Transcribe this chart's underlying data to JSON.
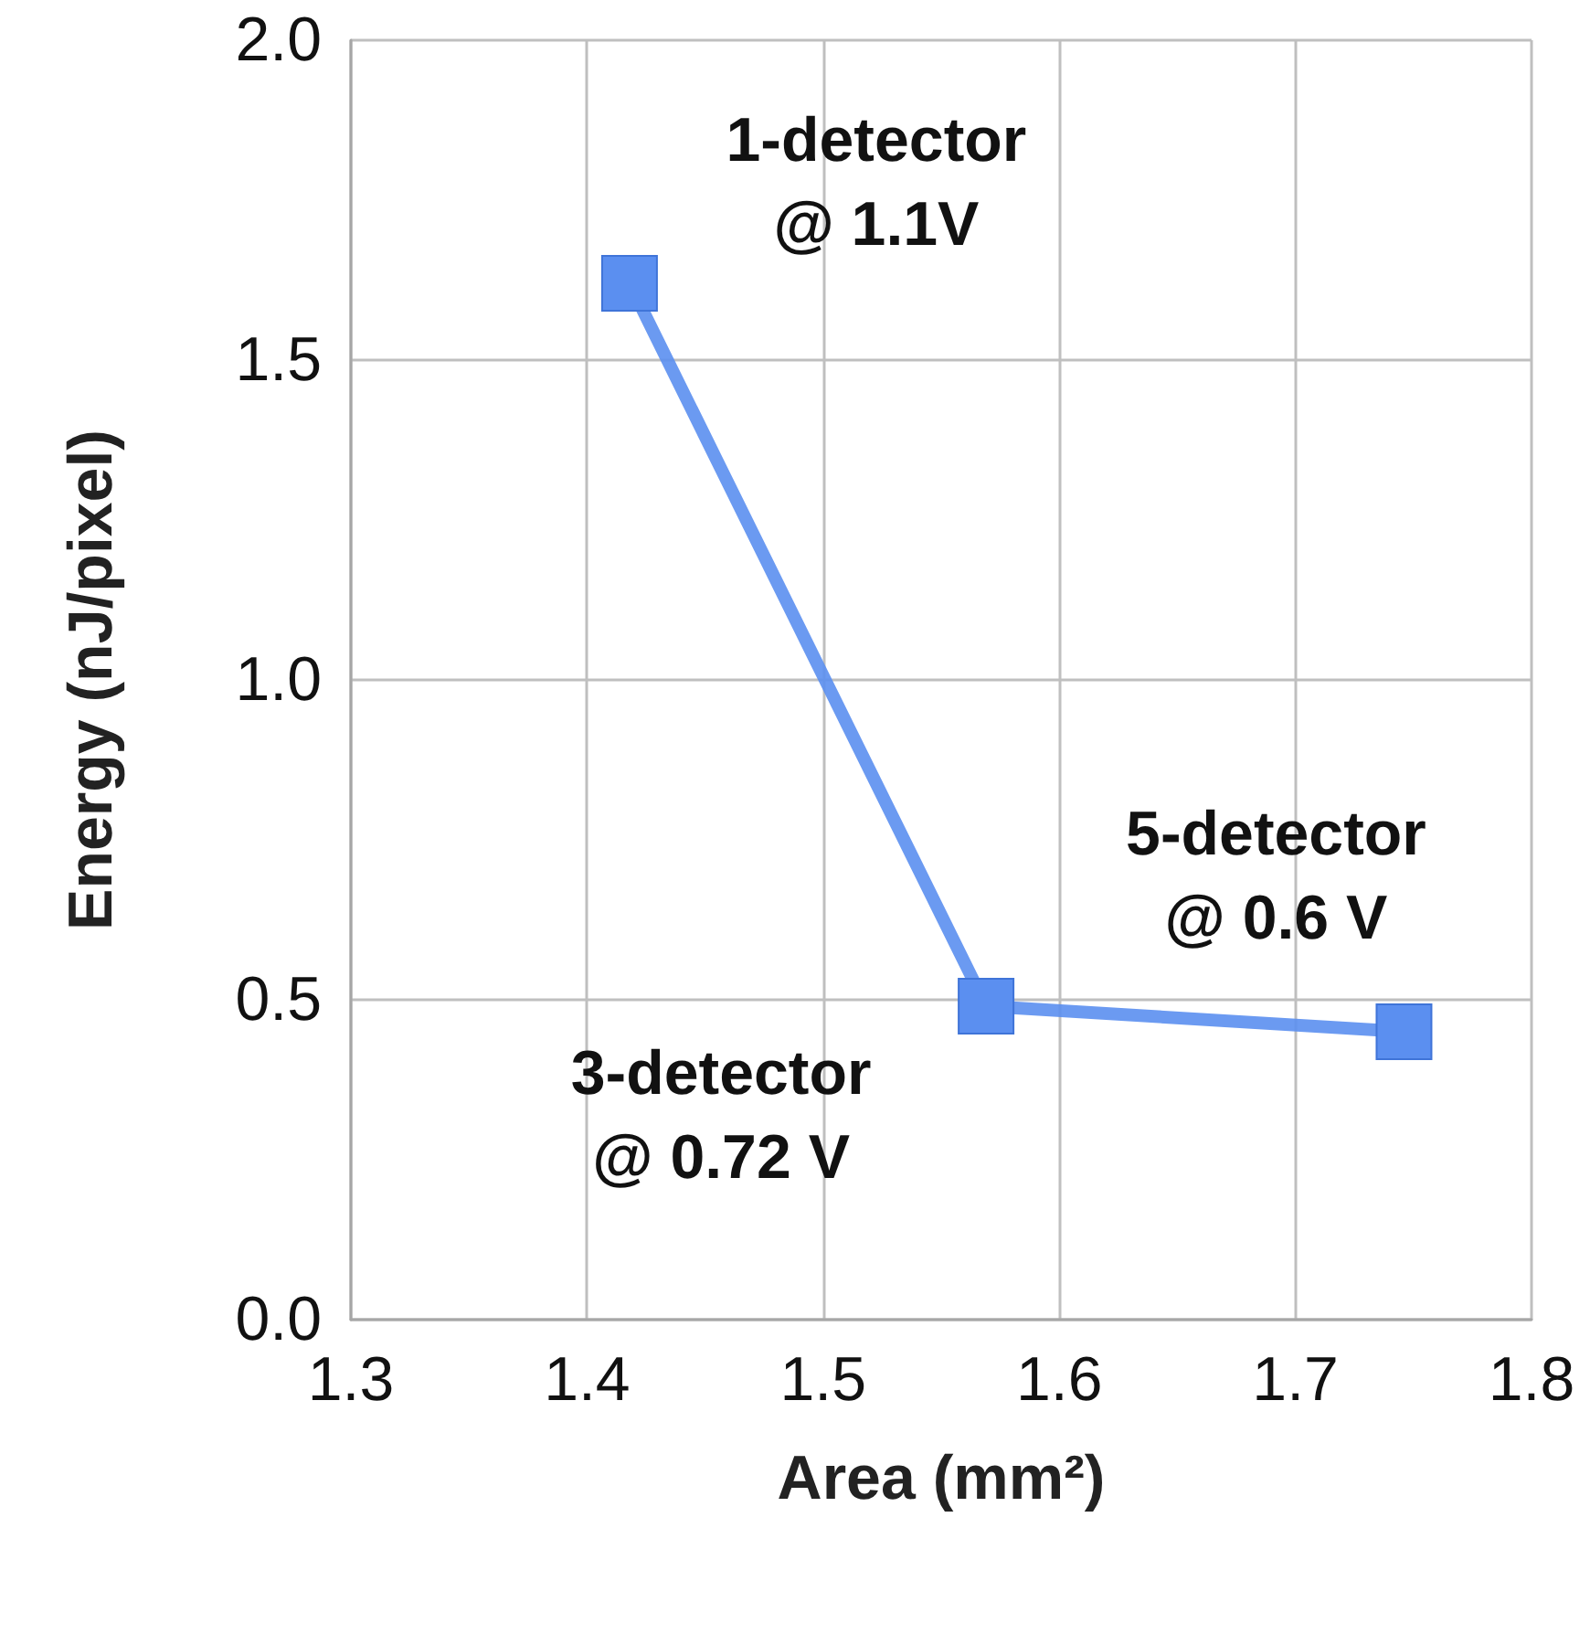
{
  "chart_data": {
    "type": "line",
    "xlabel": "Area (mm²)",
    "ylabel": "Energy (nJ/pixel)",
    "x": [
      1.418,
      1.569,
      1.746
    ],
    "series": [
      {
        "color": "#5b8ff0",
        "values": [
          1.62,
          0.49,
          0.45
        ]
      }
    ],
    "xlim": [
      1.3,
      1.8
    ],
    "xticks": [
      1.3,
      1.4,
      1.5,
      1.6,
      1.7,
      1.8
    ],
    "ylim": [
      0,
      2
    ],
    "yticks": [
      {
        "value": 0,
        "label": "0.0"
      },
      {
        "value": 0.5,
        "label": "0.5"
      },
      {
        "value": 1,
        "label": "1.0"
      },
      {
        "value": 1.5,
        "label": "1.5"
      },
      {
        "value": 2,
        "label": "2.0"
      }
    ],
    "annotations": [
      {
        "text": "1-detector\n@ 1.1V",
        "x": 1.418,
        "y": 1.62
      },
      {
        "text": "3-detector\n@ 0.72 V",
        "x": 1.569,
        "y": 0.49
      },
      {
        "text": "5-detector\n@ 0.6 V",
        "x": 1.746,
        "y": 0.45
      }
    ],
    "grid": true,
    "marker": "square",
    "line_style": "solid"
  }
}
